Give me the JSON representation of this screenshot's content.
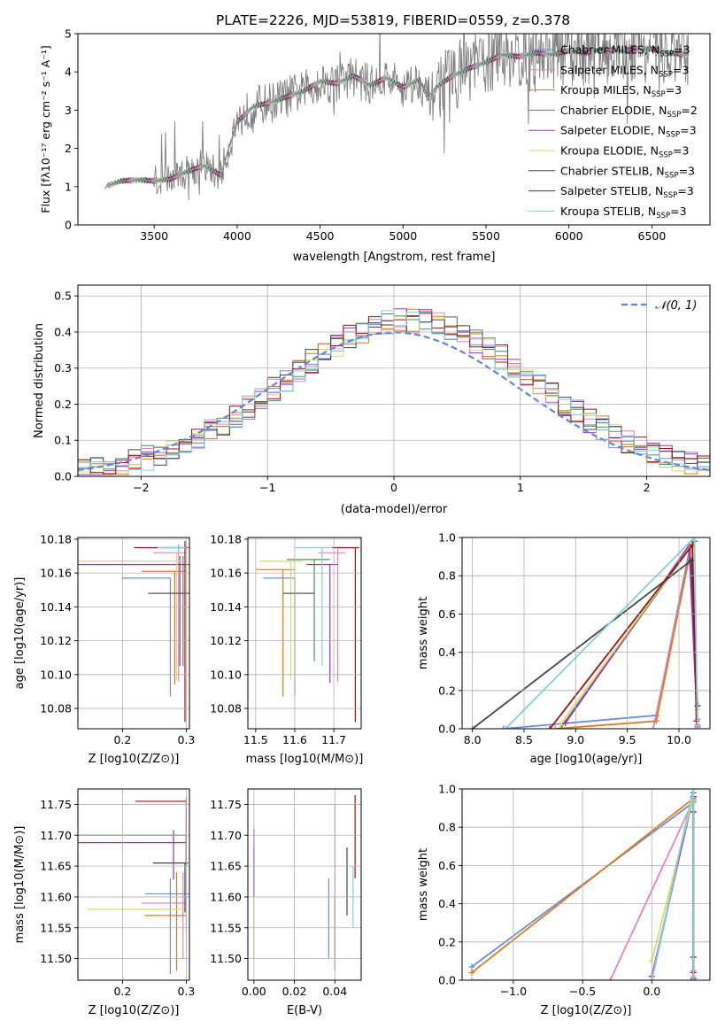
{
  "figure": {
    "title": "PLATE=2226, MJD=53819, FIBERID=0559, z=0.378"
  },
  "model_colors": [
    "#6a8fd8",
    "#e882c0",
    "#e07820",
    "#4e8e5a",
    "#9b30c8",
    "#d9de60",
    "#444444",
    "#a01010",
    "#80d0e0"
  ],
  "chart_data": [
    {
      "name": "spectrum",
      "type": "line",
      "xlabel": "wavelength [Angstrom, rest frame]",
      "ylabel": "Flux [fλ10⁻¹⁷ erg cm⁻² s⁻¹ A⁻¹]",
      "xlim": [
        3040,
        6850
      ],
      "ylim": [
        0,
        5
      ],
      "xticks": [
        3500,
        4000,
        4500,
        5000,
        5500,
        6000,
        6500
      ],
      "yticks": [
        0,
        1,
        2,
        3,
        4,
        5
      ],
      "grid": false,
      "legend_position": "top-right",
      "legend": [
        {
          "model": "Chabrier MILES",
          "nssp": "3"
        },
        {
          "model": "Salpeter MILES",
          "nssp": "3"
        },
        {
          "model": "Kroupa MILES",
          "nssp": "3"
        },
        {
          "model": "Chabrier ELODIE",
          "nssp": "2"
        },
        {
          "model": "Salpeter ELODIE",
          "nssp": "3"
        },
        {
          "model": "Kroupa ELODIE",
          "nssp": "3"
        },
        {
          "model": "Chabrier STELIB",
          "nssp": "3"
        },
        {
          "model": "Salpeter STELIB",
          "nssp": "3"
        },
        {
          "model": "Kroupa STELIB",
          "nssp": "3"
        }
      ],
      "continuum": {
        "x": [
          3200,
          3300,
          3400,
          3500,
          3600,
          3700,
          3800,
          3900,
          4000,
          4100,
          4200,
          4300,
          4400,
          4500,
          4600,
          4700,
          4800,
          4900,
          5000,
          5100,
          5150,
          5200,
          5300,
          5400,
          5500,
          5600,
          5700,
          5800,
          5900,
          6000,
          6100,
          6200,
          6300,
          6400,
          6500,
          6600,
          6700
        ],
        "y": [
          1.0,
          1.15,
          1.18,
          1.15,
          1.2,
          1.4,
          1.55,
          1.3,
          2.7,
          3.1,
          3.2,
          3.35,
          3.5,
          3.75,
          3.7,
          3.9,
          3.65,
          3.85,
          3.6,
          3.8,
          3.3,
          3.6,
          3.9,
          4.1,
          4.25,
          4.45,
          4.4,
          4.5,
          4.45,
          4.55,
          4.5,
          4.6,
          4.55,
          4.6,
          4.6,
          4.5,
          4.45
        ]
      }
    },
    {
      "name": "residuals",
      "type": "histogram",
      "xlabel": "(data-model)/error",
      "ylabel": "Normed distribution",
      "xlim": [
        -2.5,
        2.5
      ],
      "ylim": [
        0,
        0.53
      ],
      "xticks": [
        -2,
        -1,
        0,
        1,
        2
      ],
      "yticks": [
        0.0,
        0.1,
        0.2,
        0.3,
        0.4,
        0.5
      ],
      "grid": true,
      "legend_position": "top-right",
      "legend": [
        {
          "label": "𝒩(0, 1)",
          "style": "dashed"
        }
      ],
      "normal": {
        "mean": 0,
        "sd": 1
      },
      "bin_width": 0.1
    },
    {
      "name": "age-vs-metallicity",
      "type": "errorbar",
      "xlabel": "Z [log10(Z/Z⊙)]",
      "ylabel": "age  [log10(age/yr)]",
      "xlim": [
        0.13,
        0.305
      ],
      "ylim": [
        10.068,
        10.181
      ],
      "xticks": [
        0.2,
        0.3
      ],
      "yticks": [
        10.08,
        10.1,
        10.12,
        10.14,
        10.16,
        10.18
      ],
      "grid": true,
      "points": [
        {
          "x": 0.275,
          "y": 10.157,
          "xerr": [
            0.0765,
            0.0
          ],
          "yerr": [
            0.07,
            0.0
          ]
        },
        {
          "x": 0.288,
          "y": 10.172,
          "xerr": [
            0.04,
            0.012
          ],
          "yerr": [
            0.076,
            0.005
          ]
        },
        {
          "x": 0.282,
          "y": 10.161,
          "xerr": [
            0.052,
            0.018
          ],
          "yerr": [
            0.067,
            0.0
          ]
        },
        {
          "x": 0.295,
          "y": 10.165,
          "xerr": [
            0.16,
            0.01
          ],
          "yerr": [
            0.06,
            0.005
          ]
        },
        {
          "x": 0.29,
          "y": 10.165,
          "xerr": [
            0.16,
            0.01
          ],
          "yerr": [
            0.06,
            0.005
          ]
        },
        {
          "x": 0.285,
          "y": 10.167,
          "xerr": [
            0.155,
            0.01
          ],
          "yerr": [
            0.07,
            0.005
          ]
        },
        {
          "x": 0.29,
          "y": 10.148,
          "xerr": [
            0.05,
            0.015
          ],
          "yerr": [
            0.0,
            0.0
          ]
        },
        {
          "x": 0.298,
          "y": 10.175,
          "xerr": [
            0.08,
            0.005
          ],
          "yerr": [
            0.103,
            0.004
          ]
        },
        {
          "x": 0.3,
          "y": 10.175,
          "xerr": [
            0.045,
            0.0
          ],
          "yerr": [
            0.0,
            0.0
          ]
        }
      ]
    },
    {
      "name": "age-vs-mass",
      "type": "errorbar",
      "xlabel": "mass [log10(M/M⊙)]",
      "ylabel": "",
      "xlim": [
        11.48,
        11.77
      ],
      "ylim": [
        10.068,
        10.181
      ],
      "xticks": [
        11.5,
        11.6,
        11.7
      ],
      "yticks": [
        10.08,
        10.1,
        10.12,
        10.14,
        10.16,
        10.18
      ],
      "grid": true,
      "points": [
        {
          "x": 11.6,
          "y": 10.157,
          "xerr": [
            0.08,
            0.0
          ],
          "yerr": [
            0.07,
            0.0
          ]
        },
        {
          "x": 11.71,
          "y": 10.172,
          "xerr": [
            0.05,
            0.02
          ],
          "yerr": [
            0.076,
            0.003
          ]
        },
        {
          "x": 11.57,
          "y": 10.162,
          "xerr": [
            0.07,
            0.03
          ],
          "yerr": [
            0.075,
            0.0
          ]
        },
        {
          "x": 11.65,
          "y": 10.168,
          "xerr": [
            0.07,
            0.04
          ],
          "yerr": [
            0.06,
            0.0
          ]
        },
        {
          "x": 11.69,
          "y": 10.165,
          "xerr": [
            0.06,
            0.02
          ],
          "yerr": [
            0.07,
            0.0
          ]
        },
        {
          "x": 11.59,
          "y": 10.167,
          "xerr": [
            0.08,
            0.03
          ],
          "yerr": [
            0.07,
            0.0
          ]
        },
        {
          "x": 11.62,
          "y": 10.148,
          "xerr": [
            0.05,
            0.03
          ],
          "yerr": [
            0.0,
            0.0
          ]
        },
        {
          "x": 11.755,
          "y": 10.175,
          "xerr": [
            0.06,
            0.01
          ],
          "yerr": [
            0.103,
            0.0
          ]
        },
        {
          "x": 11.67,
          "y": 10.175,
          "xerr": [
            0.07,
            0.02
          ],
          "yerr": [
            0.07,
            0.0
          ]
        }
      ]
    },
    {
      "name": "weight-vs-age",
      "type": "line",
      "xlabel": "age  [log10(age/yr)]",
      "ylabel": "mass weight",
      "xlim": [
        7.9,
        10.3
      ],
      "ylim": [
        0,
        1.0
      ],
      "xticks": [
        8.0,
        8.5,
        9.0,
        9.5,
        10.0
      ],
      "yticks": [
        0.0,
        0.2,
        0.4,
        0.6,
        0.8,
        1.0
      ],
      "grid": true,
      "series": [
        {
          "points": [
            [
              8.3,
              0.0
            ],
            [
              9.78,
              0.07
            ],
            [
              10.1,
              0.93
            ],
            [
              10.18,
              0.0
            ]
          ]
        },
        {
          "points": [
            [
              9.75,
              0.0
            ],
            [
              10.12,
              0.95
            ],
            [
              10.18,
              0.05
            ]
          ]
        },
        {
          "points": [
            [
              8.8,
              0.0
            ],
            [
              9.78,
              0.04
            ],
            [
              10.12,
              0.95
            ],
            [
              10.18,
              0.02
            ]
          ]
        },
        {
          "points": [
            [
              8.85,
              0.0
            ],
            [
              10.15,
              0.98
            ]
          ]
        },
        {
          "points": [
            [
              8.9,
              0.03
            ],
            [
              10.1,
              0.96
            ],
            [
              10.18,
              0.01
            ]
          ]
        },
        {
          "points": [
            [
              8.85,
              0.02
            ],
            [
              10.12,
              0.96
            ],
            [
              10.18,
              0.1
            ]
          ]
        },
        {
          "points": [
            [
              8.0,
              0.0
            ],
            [
              10.12,
              0.88
            ],
            [
              10.18,
              0.12
            ]
          ]
        },
        {
          "points": [
            [
              8.75,
              0.0
            ],
            [
              10.13,
              0.96
            ],
            [
              10.17,
              0.04
            ]
          ]
        },
        {
          "points": [
            [
              8.32,
              0.0
            ],
            [
              10.15,
              1.0
            ],
            [
              10.18,
              0.0
            ]
          ]
        }
      ]
    },
    {
      "name": "mass-vs-metallicity",
      "type": "errorbar",
      "xlabel": "Z [log10(Z/Z⊙)]",
      "ylabel": "mass [log10(M/M⊙)]",
      "xlim": [
        0.13,
        0.305
      ],
      "ylim": [
        11.465,
        11.775
      ],
      "xticks": [
        0.2,
        0.3
      ],
      "yticks": [
        11.5,
        11.55,
        11.6,
        11.65,
        11.7,
        11.75
      ],
      "grid": true,
      "points": [
        {
          "x": 0.275,
          "y": 11.605,
          "xerr": [
            0.04,
            0.03
          ],
          "yerr": [
            0.13,
            0.025
          ]
        },
        {
          "x": 0.295,
          "y": 11.59,
          "xerr": [
            0.065,
            0.005
          ],
          "yerr": [
            0.09,
            0.05
          ]
        },
        {
          "x": 0.285,
          "y": 11.57,
          "xerr": [
            0.05,
            0.015
          ],
          "yerr": [
            0.09,
            0.07
          ]
        },
        {
          "x": 0.3,
          "y": 11.7,
          "xerr": [
            0.17,
            0.0
          ],
          "yerr": [
            0.05,
            0.0
          ]
        },
        {
          "x": 0.28,
          "y": 11.688,
          "xerr": [
            0.15,
            0.02
          ],
          "yerr": [
            0.06,
            0.02
          ]
        },
        {
          "x": 0.3,
          "y": 11.58,
          "xerr": [
            0.155,
            0.0
          ],
          "yerr": [
            0.08,
            0.0
          ]
        },
        {
          "x": 0.298,
          "y": 11.655,
          "xerr": [
            0.05,
            0.005
          ],
          "yerr": [
            0.08,
            0.0
          ]
        },
        {
          "x": 0.3,
          "y": 11.755,
          "xerr": [
            0.08,
            0.0
          ],
          "yerr": [
            0.1,
            0.005
          ]
        },
        {
          "x": 0.3,
          "y": 11.645,
          "xerr": [
            0.0,
            0.0
          ],
          "yerr": [
            0.1,
            0.0
          ]
        }
      ]
    },
    {
      "name": "mass-vs-reddening",
      "type": "errorbar",
      "xlabel": "E(B-V)",
      "ylabel": "",
      "xlim": [
        -0.003,
        0.053
      ],
      "ylim": [
        11.465,
        11.775
      ],
      "xticks": [
        0.0,
        0.02,
        0.04
      ],
      "yticks": [
        11.5,
        11.55,
        11.6,
        11.65,
        11.7,
        11.75
      ],
      "grid": true,
      "points": [
        {
          "x": 0.037,
          "y": 11.58,
          "xerr": [
            0.0,
            0.0
          ],
          "yerr": [
            0.08,
            0.05
          ]
        },
        {
          "x": 0.04,
          "y": 11.64,
          "xerr": [
            0.0,
            0.0
          ],
          "yerr": [
            0.14,
            0.11
          ]
        },
        {
          "x": 0.04,
          "y": 11.56,
          "xerr": [
            0.0,
            0.0
          ],
          "yerr": [
            0.08,
            0.04
          ]
        },
        {
          "x": 0.0,
          "y": 11.65,
          "xerr": [
            0.0,
            0.0
          ],
          "yerr": [
            0.05,
            0.03
          ]
        },
        {
          "x": 0.0,
          "y": 11.67,
          "xerr": [
            0.0,
            0.0
          ],
          "yerr": [
            0.07,
            0.04
          ]
        },
        {
          "x": 0.0,
          "y": 11.56,
          "xerr": [
            0.0,
            0.0
          ],
          "yerr": [
            0.06,
            0.04
          ]
        },
        {
          "x": 0.046,
          "y": 11.63,
          "xerr": [
            0.0,
            0.0
          ],
          "yerr": [
            0.06,
            0.05
          ]
        },
        {
          "x": 0.05,
          "y": 11.7,
          "xerr": [
            0.0,
            0.0
          ],
          "yerr": [
            0.07,
            0.065
          ]
        },
        {
          "x": 0.049,
          "y": 11.6,
          "xerr": [
            0.0,
            0.0
          ],
          "yerr": [
            0.05,
            0.05
          ]
        }
      ]
    },
    {
      "name": "weight-vs-metallicity",
      "type": "line",
      "xlabel": "Z [log10(Z/Z⊙)]",
      "ylabel": "mass weight",
      "xlim": [
        -1.37,
        0.42
      ],
      "ylim": [
        0,
        1.0
      ],
      "xticks": [
        -1.0,
        -0.5,
        0.0
      ],
      "yticks": [
        0.0,
        0.2,
        0.4,
        0.6,
        0.8,
        1.0
      ],
      "grid": true,
      "series": [
        {
          "points": [
            [
              -1.3,
              0.07
            ],
            [
              0.3,
              0.93
            ],
            [
              0.3,
              0.0
            ]
          ]
        },
        {
          "points": [
            [
              -1.3,
              0.0
            ],
            [
              -0.3,
              0.0
            ],
            [
              0.3,
              0.94
            ],
            [
              0.3,
              0.05
            ]
          ]
        },
        {
          "points": [
            [
              -1.3,
              0.04
            ],
            [
              0.3,
              0.95
            ],
            [
              0.3,
              0.01
            ]
          ]
        },
        {
          "points": [
            [
              0.0,
              0.0
            ],
            [
              0.3,
              0.98
            ]
          ]
        },
        {
          "points": [
            [
              0.0,
              0.02
            ],
            [
              0.3,
              0.96
            ],
            [
              0.3,
              0.01
            ]
          ]
        },
        {
          "points": [
            [
              0.0,
              0.1
            ],
            [
              0.3,
              0.96
            ],
            [
              0.3,
              0.02
            ]
          ]
        },
        {
          "points": [
            [
              0.3,
              0.0
            ],
            [
              0.3,
              0.88
            ],
            [
              0.3,
              0.12
            ]
          ]
        },
        {
          "points": [
            [
              0.3,
              0.0
            ],
            [
              0.3,
              0.96
            ],
            [
              0.3,
              0.04
            ]
          ]
        },
        {
          "points": [
            [
              0.0,
              0.0
            ],
            [
              0.3,
              1.0
            ],
            [
              0.3,
              0.0
            ]
          ]
        }
      ]
    }
  ]
}
